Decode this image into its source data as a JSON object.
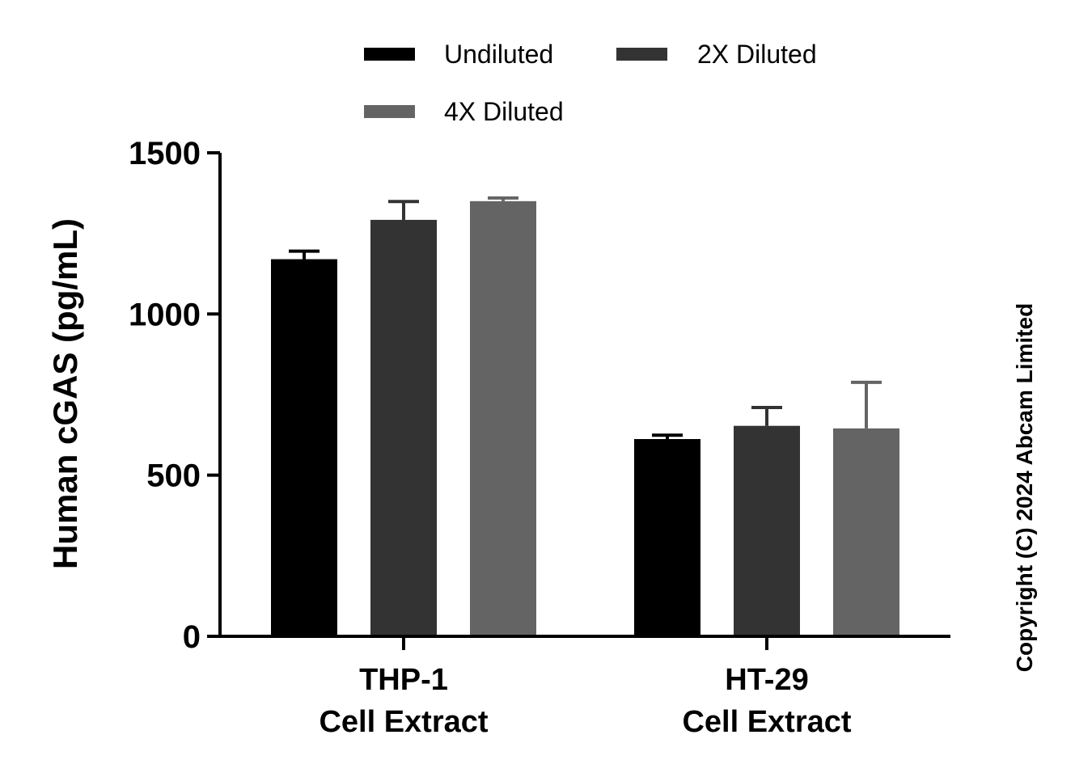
{
  "chart_data": {
    "type": "bar",
    "title": "",
    "xlabel": "",
    "ylabel": "Human cGAS (pg/mL)",
    "ylim": [
      0,
      1500
    ],
    "yticks": [
      0,
      500,
      1000,
      1500
    ],
    "categories": [
      [
        "THP-1",
        "Cell Extract"
      ],
      [
        "HT-29",
        "Cell Extract"
      ]
    ],
    "series": [
      {
        "name": "Undiluted",
        "color": "#000000",
        "values": [
          1170,
          612
        ],
        "errors": [
          25,
          12
        ]
      },
      {
        "name": "2X Diluted",
        "color": "#333333",
        "values": [
          1292,
          653
        ],
        "errors": [
          57,
          57
        ]
      },
      {
        "name": "4X Diluted",
        "color": "#646464",
        "values": [
          1350,
          645
        ],
        "errors": [
          10,
          143
        ]
      }
    ],
    "legend_position": "top-center",
    "grid": false,
    "error_bars": "upper"
  },
  "copyright": "Copyright (C) 2024 Abcam Limited"
}
